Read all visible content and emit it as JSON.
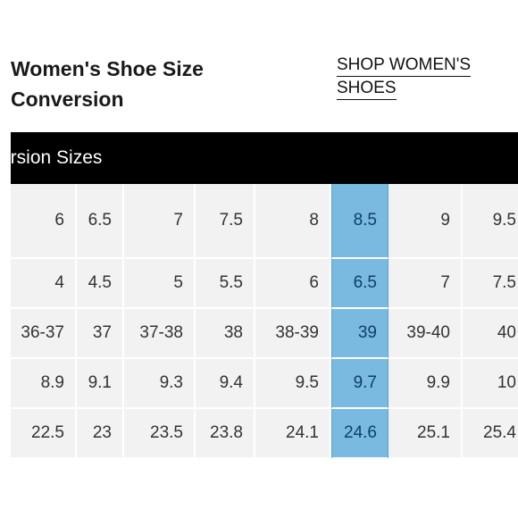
{
  "page": {
    "title_line1": "Women's Shoe Size",
    "title_line2": "Conversion",
    "shop_link_line1": "SHOP WOMEN'S",
    "shop_link_line2": "SHOES"
  },
  "table": {
    "header": "ersion Sizes",
    "highlight_column": 6,
    "rows": [
      [
        "6",
        "6.5",
        "7",
        "7.5",
        "8",
        "8.5",
        "9",
        "9.5"
      ],
      [
        "4",
        "4.5",
        "5",
        "5.5",
        "6",
        "6.5",
        "7",
        "7.5"
      ],
      [
        "36-37",
        "37",
        "37-38",
        "38",
        "38-39",
        "39",
        "39-40",
        "40"
      ],
      [
        "8.9",
        "9.1",
        "9.3",
        "9.4",
        "9.5",
        "9.7",
        "9.9",
        "10"
      ],
      [
        "22.5",
        "23",
        "23.5",
        "23.8",
        "24.1",
        "24.6",
        "25.1",
        "25.4"
      ]
    ]
  },
  "colors": {
    "highlight": "#7ab9e0",
    "cell": "#f2f2f2",
    "header_bar": "#000000"
  }
}
